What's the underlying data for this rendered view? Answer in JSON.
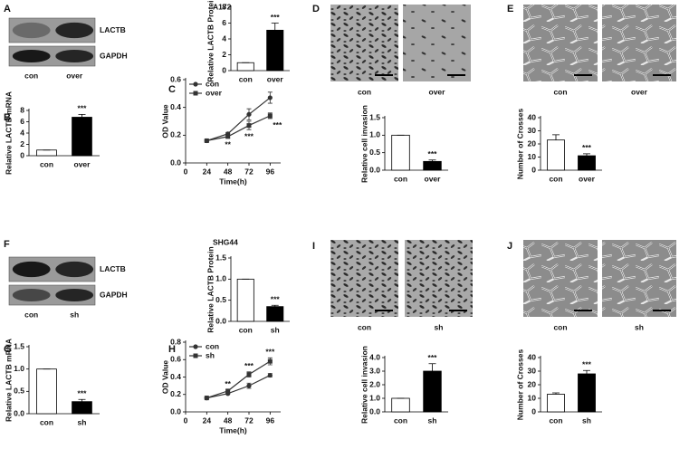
{
  "figure": {
    "panel_labels": [
      "A",
      "B",
      "C",
      "D",
      "E",
      "F",
      "G",
      "H",
      "I",
      "J"
    ],
    "blots": [
      {
        "cell_line": "A172",
        "bands": [
          "LACTB",
          "GAPDH"
        ],
        "lanes": [
          "con",
          "over"
        ]
      },
      {
        "cell_line": "SHG44",
        "bands": [
          "LACTB",
          "GAPDH"
        ],
        "lanes": [
          "con",
          "sh"
        ]
      }
    ],
    "micrographs": [
      {
        "lanes": [
          "con",
          "over"
        ]
      },
      {
        "lanes": [
          "con",
          "over"
        ]
      },
      {
        "lanes": [
          "con",
          "sh"
        ]
      },
      {
        "lanes": [
          "con",
          "sh"
        ]
      }
    ]
  },
  "chart_data": [
    {
      "type": "bar",
      "ylabel": "Relative LACTB Protein",
      "categories": [
        "con",
        "over"
      ],
      "values": [
        1,
        5.1
      ],
      "errors": [
        0,
        0.9
      ],
      "colors": [
        "#ffffff",
        "#000000"
      ],
      "ylim": [
        0,
        8
      ],
      "yticks": [
        0,
        2,
        4,
        6,
        8
      ],
      "significance": [
        null,
        "***"
      ]
    },
    {
      "type": "bar",
      "ylabel": "Relative LACTB mRNA",
      "categories": [
        "con",
        "over"
      ],
      "values": [
        1,
        6.8
      ],
      "errors": [
        0,
        0.5
      ],
      "colors": [
        "#ffffff",
        "#000000"
      ],
      "ylim": [
        0,
        8
      ],
      "yticks": [
        0,
        2,
        4,
        6,
        8
      ],
      "significance": [
        null,
        "***"
      ]
    },
    {
      "type": "line",
      "xlabel": "Time(h)",
      "ylabel": "OD Value",
      "x": [
        24,
        48,
        72,
        96
      ],
      "xlim": [
        0,
        108
      ],
      "xticks": [
        0,
        24,
        48,
        72,
        96
      ],
      "ylim": [
        0,
        0.6
      ],
      "yticks": [
        {
          "value": 0,
          "label": "0.0"
        },
        0.2,
        0.4,
        0.6
      ],
      "series": [
        {
          "name": "con",
          "color": "#333333",
          "marker": "circle",
          "values": [
            0.16,
            0.21,
            0.35,
            0.47
          ],
          "errors": [
            0.005,
            0.01,
            0.04,
            0.04
          ]
        },
        {
          "name": "over",
          "color": "#333333",
          "marker": "square",
          "values": [
            0.16,
            0.19,
            0.27,
            0.34
          ],
          "errors": [
            0.005,
            0.01,
            0.03,
            0.02
          ]
        }
      ],
      "significance": [
        null,
        "**",
        "***",
        "***"
      ]
    },
    {
      "type": "bar",
      "ylabel": "Relative cell invasion",
      "categories": [
        "con",
        "over"
      ],
      "values": [
        1,
        0.25
      ],
      "errors": [
        0,
        0.04
      ],
      "colors": [
        "#ffffff",
        "#000000"
      ],
      "ylim": [
        0,
        1.5
      ],
      "yticks": [
        {
          "value": 0,
          "label": "0.0"
        },
        0.5,
        {
          "value": 1,
          "label": "1.0"
        },
        1.5
      ],
      "significance": [
        null,
        "***"
      ]
    },
    {
      "type": "bar",
      "ylabel": "Number of Crosses",
      "categories": [
        "con",
        "over"
      ],
      "values": [
        23,
        11
      ],
      "errors": [
        4,
        1.5
      ],
      "colors": [
        "#ffffff",
        "#000000"
      ],
      "ylim": [
        0,
        40
      ],
      "yticks": [
        0,
        10,
        20,
        30,
        40
      ],
      "significance": [
        null,
        "***"
      ]
    },
    {
      "type": "bar",
      "ylabel": "Relative LACTB Protein",
      "categories": [
        "con",
        "sh"
      ],
      "values": [
        1,
        0.35
      ],
      "errors": [
        0,
        0.03
      ],
      "colors": [
        "#ffffff",
        "#000000"
      ],
      "ylim": [
        0,
        1.5
      ],
      "yticks": [
        {
          "value": 0,
          "label": "0.0"
        },
        0.5,
        {
          "value": 1,
          "label": "1.0"
        },
        1.5
      ],
      "significance": [
        null,
        "***"
      ]
    },
    {
      "type": "bar",
      "ylabel": "Relative LACTB mRNA",
      "categories": [
        "con",
        "sh"
      ],
      "values": [
        1,
        0.27
      ],
      "errors": [
        0,
        0.05
      ],
      "colors": [
        "#ffffff",
        "#000000"
      ],
      "ylim": [
        0,
        1.5
      ],
      "yticks": [
        {
          "value": 0,
          "label": "0.0"
        },
        0.5,
        {
          "value": 1,
          "label": "1.0"
        },
        1.5
      ],
      "significance": [
        null,
        "***"
      ]
    },
    {
      "type": "line",
      "xlabel": "Time(h)",
      "ylabel": "OD Value",
      "x": [
        24,
        48,
        72,
        96
      ],
      "xlim": [
        0,
        108
      ],
      "xticks": [
        0,
        24,
        48,
        72,
        96
      ],
      "ylim": [
        0,
        0.8
      ],
      "yticks": [
        {
          "value": 0,
          "label": "0.0"
        },
        0.2,
        0.4,
        0.6,
        0.8
      ],
      "series": [
        {
          "name": "con",
          "color": "#333333",
          "marker": "circle",
          "values": [
            0.16,
            0.21,
            0.3,
            0.42
          ],
          "errors": [
            0.005,
            0.01,
            0.03,
            0.02
          ]
        },
        {
          "name": "sh",
          "color": "#333333",
          "marker": "square",
          "values": [
            0.16,
            0.24,
            0.43,
            0.58
          ],
          "errors": [
            0.005,
            0.01,
            0.03,
            0.04
          ]
        }
      ],
      "significance": [
        null,
        "**",
        "***",
        "***"
      ]
    },
    {
      "type": "bar",
      "ylabel": "Relative cell invasion",
      "categories": [
        "con",
        "sh"
      ],
      "values": [
        1,
        3
      ],
      "errors": [
        0,
        0.55
      ],
      "colors": [
        "#ffffff",
        "#000000"
      ],
      "ylim": [
        0,
        4
      ],
      "yticks": [
        {
          "value": 0,
          "label": "0.0"
        },
        {
          "value": 1,
          "label": "1.0"
        },
        {
          "value": 2,
          "label": "2.0"
        },
        {
          "value": 3,
          "label": "3.0"
        },
        {
          "value": 4,
          "label": "4.0"
        }
      ],
      "significance": [
        null,
        "***"
      ]
    },
    {
      "type": "bar",
      "ylabel": "Number of Crosses",
      "categories": [
        "con",
        "sh"
      ],
      "values": [
        13,
        28
      ],
      "errors": [
        1,
        2.5
      ],
      "colors": [
        "#ffffff",
        "#000000"
      ],
      "ylim": [
        0,
        40
      ],
      "yticks": [
        0,
        10,
        20,
        30,
        40
      ],
      "significance": [
        null,
        "***"
      ]
    }
  ]
}
